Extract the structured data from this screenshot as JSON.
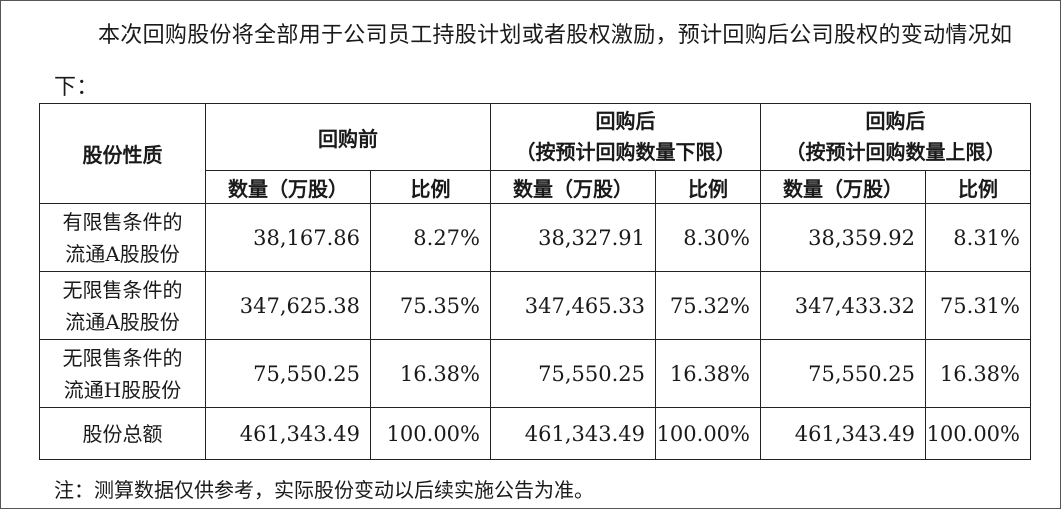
{
  "intro_text": "本次回购股份将全部用于公司员工持股计划或者股权激励，预计回购后公司股权的变动情况如下：",
  "table": {
    "header": {
      "share_type": "股份性质",
      "before": "回购前",
      "after_low_line1": "回购后",
      "after_low_line2": "（按预计回购数量下限）",
      "after_high_line1": "回购后",
      "after_high_line2": "（按预计回购数量上限）",
      "qty": "数量（万股）",
      "ratio": "比例"
    },
    "rows": [
      {
        "label_line1": "有限售条件的",
        "label_line2": "流通A股股份",
        "before_qty": "38,167.86",
        "before_ratio": "8.27%",
        "low_qty": "38,327.91",
        "low_ratio": "8.30%",
        "high_qty": "38,359.92",
        "high_ratio": "8.31%"
      },
      {
        "label_line1": "无限售条件的",
        "label_line2": "流通A股股份",
        "before_qty": "347,625.38",
        "before_ratio": "75.35%",
        "low_qty": "347,465.33",
        "low_ratio": "75.32%",
        "high_qty": "347,433.32",
        "high_ratio": "75.31%"
      },
      {
        "label_line1": "无限售条件的",
        "label_line2": "流通H股股份",
        "before_qty": "75,550.25",
        "before_ratio": "16.38%",
        "low_qty": "75,550.25",
        "low_ratio": "16.38%",
        "high_qty": "75,550.25",
        "high_ratio": "16.38%"
      },
      {
        "label_line1": "股份总额",
        "label_line2": "",
        "before_qty": "461,343.49",
        "before_ratio": "100.00%",
        "low_qty": "461,343.49",
        "low_ratio": "100.00%",
        "high_qty": "461,343.49",
        "high_ratio": "100.00%"
      }
    ]
  },
  "footnote": "注：测算数据仅供参考，实际股份变动以后续实施公告为准。"
}
